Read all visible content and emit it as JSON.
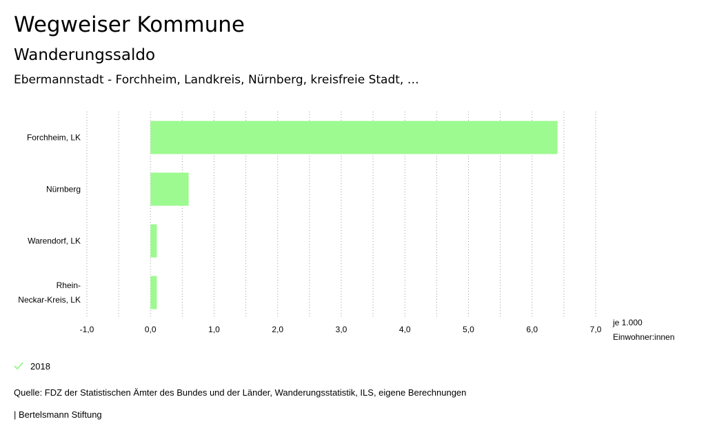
{
  "header": {
    "title": "Wegweiser Kommune",
    "subtitle": "Wanderungssaldo",
    "context": "Ebermannstadt - Forchheim, Landkreis, Nürnberg, kreisfreie Stadt, …"
  },
  "chart_data": {
    "type": "bar",
    "orientation": "horizontal",
    "categories": [
      "Forchheim, LK",
      "Nürnberg",
      "Warendorf, LK",
      "Rhein-Neckar-Kreis, LK"
    ],
    "series": [
      {
        "name": "2018",
        "values": [
          6.4,
          0.6,
          0.1,
          0.1
        ],
        "color": "#9cfa90"
      }
    ],
    "xlim": [
      -1.0,
      7.0
    ],
    "xticks": [
      "-1,0",
      "0,0",
      "1,0",
      "2,0",
      "3,0",
      "4,0",
      "5,0",
      "6,0",
      "7,0"
    ],
    "xlabel": [
      "je 1.000",
      "Einwohner:innen"
    ],
    "grid": "vertical-dotted",
    "legend_position": "bottom-left"
  },
  "legend": {
    "items": [
      {
        "label": "2018",
        "icon": "check-icon",
        "color": "#9cfa90"
      }
    ]
  },
  "footer": {
    "source": "Quelle: FDZ der Statistischen Ämter des Bundes und der Länder, Wanderungsstatistik, ILS, eigene Berechnungen",
    "credit": "| Bertelsmann Stiftung"
  }
}
